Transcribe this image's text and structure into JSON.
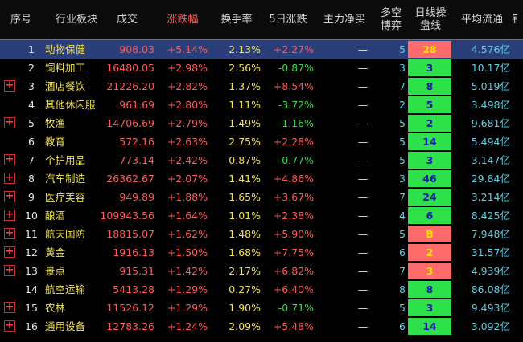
{
  "headers": {
    "idx": "序号",
    "name": "行业板块",
    "price": "成交",
    "chg": "涨跌幅",
    "turnover": "换手率",
    "five_day": "5日涨跌",
    "net_inflow": "主力净买",
    "bull_bear_1": "多空",
    "bull_bear_2": "博弈",
    "daily_1": "日线操",
    "daily_2": "盘线",
    "float_cap": "平均流通",
    "cut": "钅"
  },
  "rows": [
    {
      "idx": "1",
      "name": "动物保健",
      "price": "908.03",
      "chg": "+5.14%",
      "turnover": "2.13%",
      "five_day": "+2.27%",
      "net": "—",
      "bo": "5",
      "daily": "28",
      "float": "4.576亿",
      "expand": false,
      "selected": true,
      "five_up": true,
      "daily_color": "y"
    },
    {
      "idx": "2",
      "name": "饲料加工",
      "price": "16480.05",
      "chg": "+2.98%",
      "turnover": "2.56%",
      "five_day": "-0.87%",
      "net": "—",
      "bo": "3",
      "daily": "3",
      "float": "10.17亿",
      "expand": false,
      "selected": false,
      "five_up": false,
      "daily_color": "g"
    },
    {
      "idx": "3",
      "name": "酒店餐饮",
      "price": "21226.20",
      "chg": "+2.82%",
      "turnover": "1.37%",
      "five_day": "+8.54%",
      "net": "—",
      "bo": "7",
      "daily": "8",
      "float": "5.019亿",
      "expand": true,
      "selected": false,
      "five_up": true,
      "daily_color": "g"
    },
    {
      "idx": "4",
      "name": "其他休闲服",
      "price": "961.69",
      "chg": "+2.80%",
      "turnover": "1.11%",
      "five_day": "-3.72%",
      "net": "—",
      "bo": "2",
      "daily": "5",
      "float": "3.498亿",
      "expand": false,
      "selected": false,
      "five_up": false,
      "daily_color": "g"
    },
    {
      "idx": "5",
      "name": "牧渔",
      "price": "14706.69",
      "chg": "+2.79%",
      "turnover": "1.49%",
      "five_day": "-1.16%",
      "net": "—",
      "bo": "5",
      "daily": "2",
      "float": "9.681亿",
      "expand": true,
      "selected": false,
      "five_up": false,
      "daily_color": "g"
    },
    {
      "idx": "6",
      "name": "教育",
      "price": "572.16",
      "chg": "+2.63%",
      "turnover": "2.75%",
      "five_day": "+2.28%",
      "net": "—",
      "bo": "5",
      "daily": "14",
      "float": "5.494亿",
      "expand": false,
      "selected": false,
      "five_up": true,
      "daily_color": "g"
    },
    {
      "idx": "7",
      "name": "个护用品",
      "price": "773.14",
      "chg": "+2.42%",
      "turnover": "0.87%",
      "five_day": "-0.77%",
      "net": "—",
      "bo": "5",
      "daily": "3",
      "float": "3.147亿",
      "expand": true,
      "selected": false,
      "five_up": false,
      "daily_color": "g"
    },
    {
      "idx": "8",
      "name": "汽车制造",
      "price": "26362.67",
      "chg": "+2.07%",
      "turnover": "1.41%",
      "five_day": "+4.86%",
      "net": "—",
      "bo": "3",
      "daily": "46",
      "float": "29.84亿",
      "expand": true,
      "selected": false,
      "five_up": true,
      "daily_color": "g"
    },
    {
      "idx": "9",
      "name": "医疗美容",
      "price": "949.89",
      "chg": "+1.88%",
      "turnover": "1.65%",
      "five_day": "+3.67%",
      "net": "—",
      "bo": "7",
      "daily": "24",
      "float": "3.214亿",
      "expand": true,
      "selected": false,
      "five_up": true,
      "daily_color": "g"
    },
    {
      "idx": "10",
      "name": "酿酒",
      "price": "109943.56",
      "chg": "+1.64%",
      "turnover": "1.01%",
      "five_day": "+2.38%",
      "net": "—",
      "bo": "4",
      "daily": "6",
      "float": "8.425亿",
      "expand": true,
      "selected": false,
      "five_up": true,
      "daily_color": "g"
    },
    {
      "idx": "11",
      "name": "航天国防",
      "price": "18815.07",
      "chg": "+1.62%",
      "turnover": "1.48%",
      "five_day": "+5.90%",
      "net": "—",
      "bo": "5",
      "daily": "B",
      "float": "7.948亿",
      "expand": true,
      "selected": false,
      "five_up": true,
      "daily_color": "y"
    },
    {
      "idx": "12",
      "name": "黄金",
      "price": "1916.13",
      "chg": "+1.50%",
      "turnover": "1.68%",
      "five_day": "+7.75%",
      "net": "—",
      "bo": "6",
      "daily": "2",
      "float": "31.57亿",
      "expand": true,
      "selected": false,
      "five_up": true,
      "daily_color": "y"
    },
    {
      "idx": "13",
      "name": "景点",
      "price": "915.31",
      "chg": "+1.42%",
      "turnover": "2.17%",
      "five_day": "+6.82%",
      "net": "—",
      "bo": "7",
      "daily": "3",
      "float": "4.939亿",
      "expand": true,
      "selected": false,
      "five_up": true,
      "daily_color": "y"
    },
    {
      "idx": "14",
      "name": "航空运输",
      "price": "5413.28",
      "chg": "+1.29%",
      "turnover": "0.27%",
      "five_day": "+6.40%",
      "net": "—",
      "bo": "8",
      "daily": "8",
      "float": "86.08亿",
      "expand": false,
      "selected": false,
      "five_up": true,
      "daily_color": "g"
    },
    {
      "idx": "15",
      "name": "农林",
      "price": "11526.12",
      "chg": "+1.29%",
      "turnover": "1.90%",
      "five_day": "-0.71%",
      "net": "—",
      "bo": "5",
      "daily": "3",
      "float": "9.493亿",
      "expand": true,
      "selected": false,
      "five_up": false,
      "daily_color": "g"
    },
    {
      "idx": "16",
      "name": "通用设备",
      "price": "12783.26",
      "chg": "+1.24%",
      "turnover": "2.09%",
      "five_day": "+5.48%",
      "net": "—",
      "bo": "6",
      "daily": "14",
      "float": "3.092亿",
      "expand": true,
      "selected": false,
      "five_up": true,
      "daily_color": "g"
    }
  ],
  "colors": {
    "up": "#ff5a5a",
    "down": "#38d84a",
    "name": "#f0e15a",
    "selected": "#2a3f7a",
    "daily_green": "#2ee04a",
    "daily_red": "#ff6b6b"
  }
}
